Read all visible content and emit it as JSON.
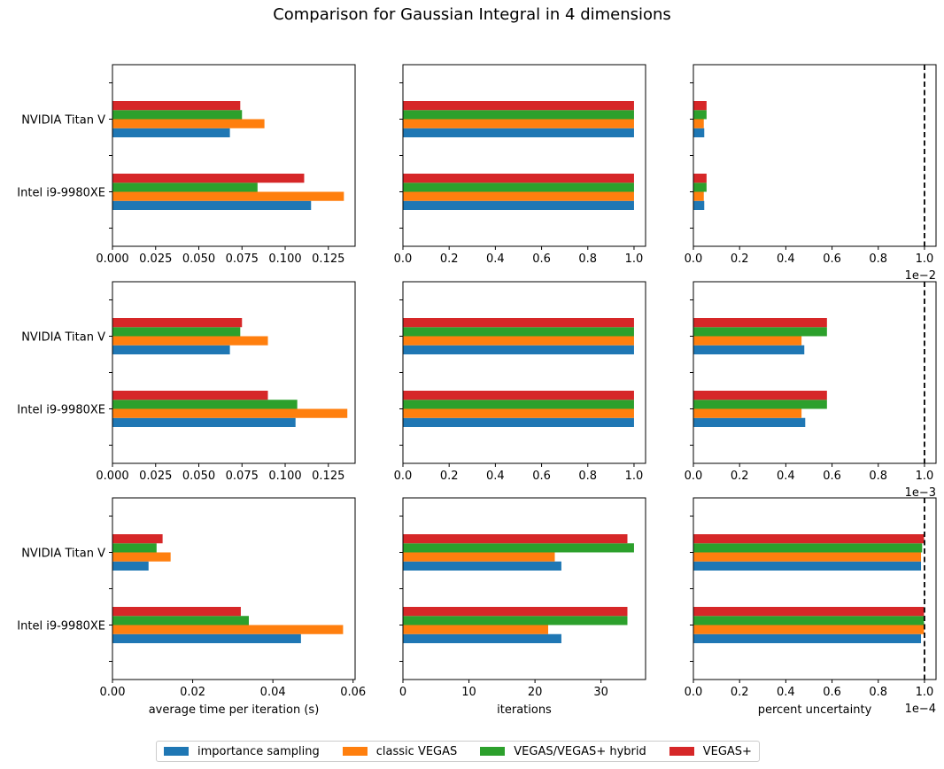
{
  "title": "Comparison for Gaussian Integral in 4 dimensions",
  "legend": [
    {
      "label": "importance sampling",
      "color": "#1f77b4"
    },
    {
      "label": "classic VEGAS",
      "color": "#ff7f0e"
    },
    {
      "label": "VEGAS/VEGAS+ hybrid",
      "color": "#2ca02c"
    },
    {
      "label": "VEGAS+",
      "color": "#d62728"
    }
  ],
  "chart_data": [
    {
      "type": "bar",
      "orientation": "horizontal",
      "row": 1,
      "col": 1,
      "categories": [
        "Intel i9-9980XE",
        "NVIDIA Titan V"
      ],
      "series": [
        {
          "name": "importance sampling",
          "values": [
            0.115,
            0.068
          ]
        },
        {
          "name": "classic VEGAS",
          "values": [
            0.134,
            0.088
          ]
        },
        {
          "name": "VEGAS/VEGAS+ hybrid",
          "values": [
            0.084,
            0.075
          ]
        },
        {
          "name": "VEGAS+",
          "values": [
            0.111,
            0.074
          ]
        }
      ],
      "xlim": [
        0,
        0.1405
      ],
      "xticks": [
        0,
        0.025,
        0.05,
        0.075,
        0.1,
        0.125
      ],
      "xticklabels": [
        "0.000",
        "0.025",
        "0.050",
        "0.075",
        "0.100",
        "0.125"
      ],
      "show_yticklabels": true,
      "xlabel": "",
      "offset_label": "",
      "threshold": null
    },
    {
      "type": "bar",
      "orientation": "horizontal",
      "row": 1,
      "col": 2,
      "categories": [
        "Intel i9-9980XE",
        "NVIDIA Titan V"
      ],
      "series": [
        {
          "name": "importance sampling",
          "values": [
            1,
            1
          ]
        },
        {
          "name": "classic VEGAS",
          "values": [
            1,
            1
          ]
        },
        {
          "name": "VEGAS/VEGAS+ hybrid",
          "values": [
            1,
            1
          ]
        },
        {
          "name": "VEGAS+",
          "values": [
            1,
            1
          ]
        }
      ],
      "xlim": [
        0,
        1.05
      ],
      "xticks": [
        0,
        0.2,
        0.4,
        0.6,
        0.8,
        1.0
      ],
      "xticklabels": [
        "0.0",
        "0.2",
        "0.4",
        "0.6",
        "0.8",
        "1.0"
      ],
      "show_yticklabels": false,
      "xlabel": "",
      "offset_label": "",
      "threshold": null
    },
    {
      "type": "bar",
      "orientation": "horizontal",
      "row": 1,
      "col": 3,
      "categories": [
        "Intel i9-9980XE",
        "NVIDIA Titan V"
      ],
      "series": [
        {
          "name": "importance sampling",
          "values": [
            0.047,
            0.047
          ]
        },
        {
          "name": "classic VEGAS",
          "values": [
            0.045,
            0.045
          ]
        },
        {
          "name": "VEGAS/VEGAS+ hybrid",
          "values": [
            0.057,
            0.057
          ]
        },
        {
          "name": "VEGAS+",
          "values": [
            0.057,
            0.057
          ]
        }
      ],
      "xlim": [
        0,
        1.05
      ],
      "xticks": [
        0,
        0.2,
        0.4,
        0.6,
        0.8,
        1.0
      ],
      "xticklabels": [
        "0.0",
        "0.2",
        "0.4",
        "0.6",
        "0.8",
        "1.0"
      ],
      "show_yticklabels": false,
      "xlabel": "",
      "offset_label": "1e−2",
      "threshold": 1.0
    },
    {
      "type": "bar",
      "orientation": "horizontal",
      "row": 2,
      "col": 1,
      "categories": [
        "Intel i9-9980XE",
        "NVIDIA Titan V"
      ],
      "series": [
        {
          "name": "importance sampling",
          "values": [
            0.106,
            0.068
          ]
        },
        {
          "name": "classic VEGAS",
          "values": [
            0.136,
            0.09
          ]
        },
        {
          "name": "VEGAS/VEGAS+ hybrid",
          "values": [
            0.107,
            0.074
          ]
        },
        {
          "name": "VEGAS+",
          "values": [
            0.09,
            0.075
          ]
        }
      ],
      "xlim": [
        0,
        0.1405
      ],
      "xticks": [
        0,
        0.025,
        0.05,
        0.075,
        0.1,
        0.125
      ],
      "xticklabels": [
        "0.000",
        "0.025",
        "0.050",
        "0.075",
        "0.100",
        "0.125"
      ],
      "show_yticklabels": true,
      "xlabel": "",
      "offset_label": "",
      "threshold": null
    },
    {
      "type": "bar",
      "orientation": "horizontal",
      "row": 2,
      "col": 2,
      "categories": [
        "Intel i9-9980XE",
        "NVIDIA Titan V"
      ],
      "series": [
        {
          "name": "importance sampling",
          "values": [
            1,
            1
          ]
        },
        {
          "name": "classic VEGAS",
          "values": [
            1,
            1
          ]
        },
        {
          "name": "VEGAS/VEGAS+ hybrid",
          "values": [
            1,
            1
          ]
        },
        {
          "name": "VEGAS+",
          "values": [
            1,
            1
          ]
        }
      ],
      "xlim": [
        0,
        1.05
      ],
      "xticks": [
        0,
        0.2,
        0.4,
        0.6,
        0.8,
        1.0
      ],
      "xticklabels": [
        "0.0",
        "0.2",
        "0.4",
        "0.6",
        "0.8",
        "1.0"
      ],
      "show_yticklabels": false,
      "xlabel": "",
      "offset_label": "",
      "threshold": null
    },
    {
      "type": "bar",
      "orientation": "horizontal",
      "row": 2,
      "col": 3,
      "categories": [
        "Intel i9-9980XE",
        "NVIDIA Titan V"
      ],
      "series": [
        {
          "name": "importance sampling",
          "values": [
            0.484,
            0.48
          ]
        },
        {
          "name": "classic VEGAS",
          "values": [
            0.468,
            0.468
          ]
        },
        {
          "name": "VEGAS/VEGAS+ hybrid",
          "values": [
            0.578,
            0.578
          ]
        },
        {
          "name": "VEGAS+",
          "values": [
            0.578,
            0.578
          ]
        }
      ],
      "xlim": [
        0,
        1.05
      ],
      "xticks": [
        0,
        0.2,
        0.4,
        0.6,
        0.8,
        1.0
      ],
      "xticklabels": [
        "0.0",
        "0.2",
        "0.4",
        "0.6",
        "0.8",
        "1.0"
      ],
      "show_yticklabels": false,
      "xlabel": "",
      "offset_label": "1e−3",
      "threshold": 1.0
    },
    {
      "type": "bar",
      "orientation": "horizontal",
      "row": 3,
      "col": 1,
      "categories": [
        "Intel i9-9980XE",
        "NVIDIA Titan V"
      ],
      "series": [
        {
          "name": "importance sampling",
          "values": [
            0.047,
            0.009
          ]
        },
        {
          "name": "classic VEGAS",
          "values": [
            0.0575,
            0.0145
          ]
        },
        {
          "name": "VEGAS/VEGAS+ hybrid",
          "values": [
            0.034,
            0.011
          ]
        },
        {
          "name": "VEGAS+",
          "values": [
            0.032,
            0.0125
          ]
        }
      ],
      "xlim": [
        0,
        0.0605
      ],
      "xticks": [
        0,
        0.02,
        0.04,
        0.06
      ],
      "xticklabels": [
        "0.00",
        "0.02",
        "0.04",
        "0.06"
      ],
      "show_yticklabels": true,
      "xlabel": "average time per iteration (s)",
      "offset_label": "",
      "threshold": null
    },
    {
      "type": "bar",
      "orientation": "horizontal",
      "row": 3,
      "col": 2,
      "categories": [
        "Intel i9-9980XE",
        "NVIDIA Titan V"
      ],
      "series": [
        {
          "name": "importance sampling",
          "values": [
            24,
            24
          ]
        },
        {
          "name": "classic VEGAS",
          "values": [
            22,
            23
          ]
        },
        {
          "name": "VEGAS/VEGAS+ hybrid",
          "values": [
            34,
            35
          ]
        },
        {
          "name": "VEGAS+",
          "values": [
            34,
            34
          ]
        }
      ],
      "xlim": [
        0,
        36.75
      ],
      "xticks": [
        0,
        10,
        20,
        30
      ],
      "xticklabels": [
        "0",
        "10",
        "20",
        "30"
      ],
      "show_yticklabels": false,
      "xlabel": "iterations",
      "offset_label": "",
      "threshold": null
    },
    {
      "type": "bar",
      "orientation": "horizontal",
      "row": 3,
      "col": 3,
      "categories": [
        "Intel i9-9980XE",
        "NVIDIA Titan V"
      ],
      "series": [
        {
          "name": "importance sampling",
          "values": [
            0.985,
            0.985
          ]
        },
        {
          "name": "classic VEGAS",
          "values": [
            0.998,
            0.985
          ]
        },
        {
          "name": "VEGAS/VEGAS+ hybrid",
          "values": [
            0.998,
            0.99
          ]
        },
        {
          "name": "VEGAS+",
          "values": [
            0.998,
            0.998
          ]
        }
      ],
      "xlim": [
        0,
        1.05
      ],
      "xticks": [
        0,
        0.2,
        0.4,
        0.6,
        0.8,
        1.0
      ],
      "xticklabels": [
        "0.0",
        "0.2",
        "0.4",
        "0.6",
        "0.8",
        "1.0"
      ],
      "show_yticklabels": false,
      "xlabel": "percent uncertainty",
      "offset_label": "1e−4",
      "threshold": 1.0
    }
  ]
}
